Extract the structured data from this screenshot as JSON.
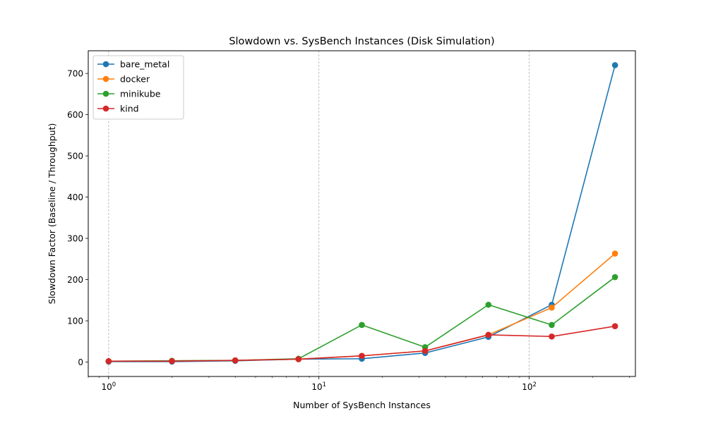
{
  "chart_data": {
    "type": "line",
    "title": "Slowdown vs. SysBench Instances (Disk Simulation)",
    "xlabel": "Number of SysBench Instances",
    "ylabel": "Slowdown Factor (Baseline / Throughput)",
    "x_scale": "log",
    "x": [
      1,
      2,
      4,
      8,
      16,
      32,
      64,
      128,
      256
    ],
    "xlim": [
      0.8,
      320
    ],
    "ylim": [
      -35,
      755
    ],
    "x_ticks": [
      1,
      10,
      100
    ],
    "x_tick_labels": [
      {
        "base": "10",
        "exp": "0"
      },
      {
        "base": "10",
        "exp": "1"
      },
      {
        "base": "10",
        "exp": "2"
      }
    ],
    "y_ticks": [
      0,
      100,
      200,
      300,
      400,
      500,
      600,
      700
    ],
    "grid": "vertical dashed at decades",
    "legend_position": "upper-left",
    "series": [
      {
        "name": "bare_metal",
        "color": "#1f77b4",
        "values": [
          1,
          1,
          3,
          7,
          8,
          22,
          61,
          139,
          720
        ]
      },
      {
        "name": "docker",
        "color": "#ff7f0e",
        "values": [
          2,
          3,
          4,
          7,
          15,
          27,
          66,
          132,
          263
        ]
      },
      {
        "name": "minikube",
        "color": "#2ca02c",
        "values": [
          2,
          3,
          4,
          8,
          90,
          36,
          139,
          90,
          206
        ]
      },
      {
        "name": "kind",
        "color": "#d62728",
        "values": [
          2,
          2,
          4,
          7,
          15,
          27,
          66,
          62,
          87
        ]
      }
    ]
  }
}
